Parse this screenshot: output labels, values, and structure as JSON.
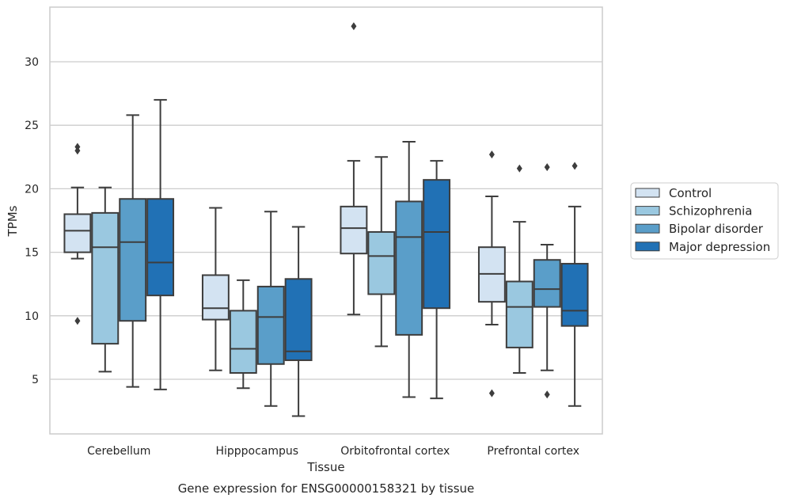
{
  "chart_data": {
    "type": "box",
    "title": "",
    "caption": "Gene expression for ENSG00000158321 by tissue",
    "xlabel": "Tissue",
    "ylabel": "TPMs",
    "ylim": [
      0.7,
      34.3
    ],
    "yticks": [
      5,
      10,
      15,
      20,
      25,
      30
    ],
    "grid": "horizontal",
    "legend_position": "right",
    "categories": [
      "Cerebellum",
      "Hipppocampus",
      "Orbitofrontal cortex",
      "Prefrontal cortex"
    ],
    "series": [
      {
        "name": "Control",
        "color": "#d3e3f2",
        "boxes": [
          {
            "whisker_low": 14.5,
            "q1": 15.0,
            "median": 16.7,
            "q3": 18.0,
            "whisker_high": 20.1,
            "outliers": [
              23.3,
              23.0,
              9.6
            ]
          },
          {
            "whisker_low": 5.7,
            "q1": 9.7,
            "median": 10.6,
            "q3": 13.2,
            "whisker_high": 18.5,
            "outliers": []
          },
          {
            "whisker_low": 10.1,
            "q1": 14.9,
            "median": 16.9,
            "q3": 18.6,
            "whisker_high": 22.2,
            "outliers": [
              32.8
            ]
          },
          {
            "whisker_low": 9.3,
            "q1": 11.1,
            "median": 13.3,
            "q3": 15.4,
            "whisker_high": 19.4,
            "outliers": [
              22.7,
              3.9
            ]
          }
        ]
      },
      {
        "name": "Schizophrenia",
        "color": "#9ac8e0",
        "boxes": [
          {
            "whisker_low": 5.6,
            "q1": 7.8,
            "median": 15.4,
            "q3": 18.1,
            "whisker_high": 20.1,
            "outliers": []
          },
          {
            "whisker_low": 4.3,
            "q1": 5.5,
            "median": 7.4,
            "q3": 10.4,
            "whisker_high": 12.8,
            "outliers": []
          },
          {
            "whisker_low": 7.6,
            "q1": 11.7,
            "median": 14.7,
            "q3": 16.6,
            "whisker_high": 22.5,
            "outliers": []
          },
          {
            "whisker_low": 5.5,
            "q1": 7.5,
            "median": 10.7,
            "q3": 12.7,
            "whisker_high": 17.4,
            "outliers": [
              21.6
            ]
          }
        ]
      },
      {
        "name": "Bipolar disorder",
        "color": "#5a9ec9",
        "boxes": [
          {
            "whisker_low": 4.4,
            "q1": 9.6,
            "median": 15.8,
            "q3": 19.2,
            "whisker_high": 25.8,
            "outliers": []
          },
          {
            "whisker_low": 2.9,
            "q1": 6.2,
            "median": 9.9,
            "q3": 12.3,
            "whisker_high": 18.2,
            "outliers": []
          },
          {
            "whisker_low": 3.6,
            "q1": 8.5,
            "median": 16.2,
            "q3": 19.0,
            "whisker_high": 23.7,
            "outliers": []
          },
          {
            "whisker_low": 5.7,
            "q1": 10.7,
            "median": 12.1,
            "q3": 14.4,
            "whisker_high": 15.6,
            "outliers": [
              21.7,
              3.8
            ]
          }
        ]
      },
      {
        "name": "Major depression",
        "color": "#2171b5",
        "boxes": [
          {
            "whisker_low": 4.2,
            "q1": 11.6,
            "median": 14.2,
            "q3": 19.2,
            "whisker_high": 27.0,
            "outliers": []
          },
          {
            "whisker_low": 2.1,
            "q1": 6.5,
            "median": 7.2,
            "q3": 12.9,
            "whisker_high": 17.0,
            "outliers": []
          },
          {
            "whisker_low": 3.5,
            "q1": 10.6,
            "median": 16.6,
            "q3": 20.7,
            "whisker_high": 22.2,
            "outliers": []
          },
          {
            "whisker_low": 2.9,
            "q1": 9.2,
            "median": 10.4,
            "q3": 14.1,
            "whisker_high": 18.6,
            "outliers": [
              21.8
            ]
          }
        ]
      }
    ]
  }
}
